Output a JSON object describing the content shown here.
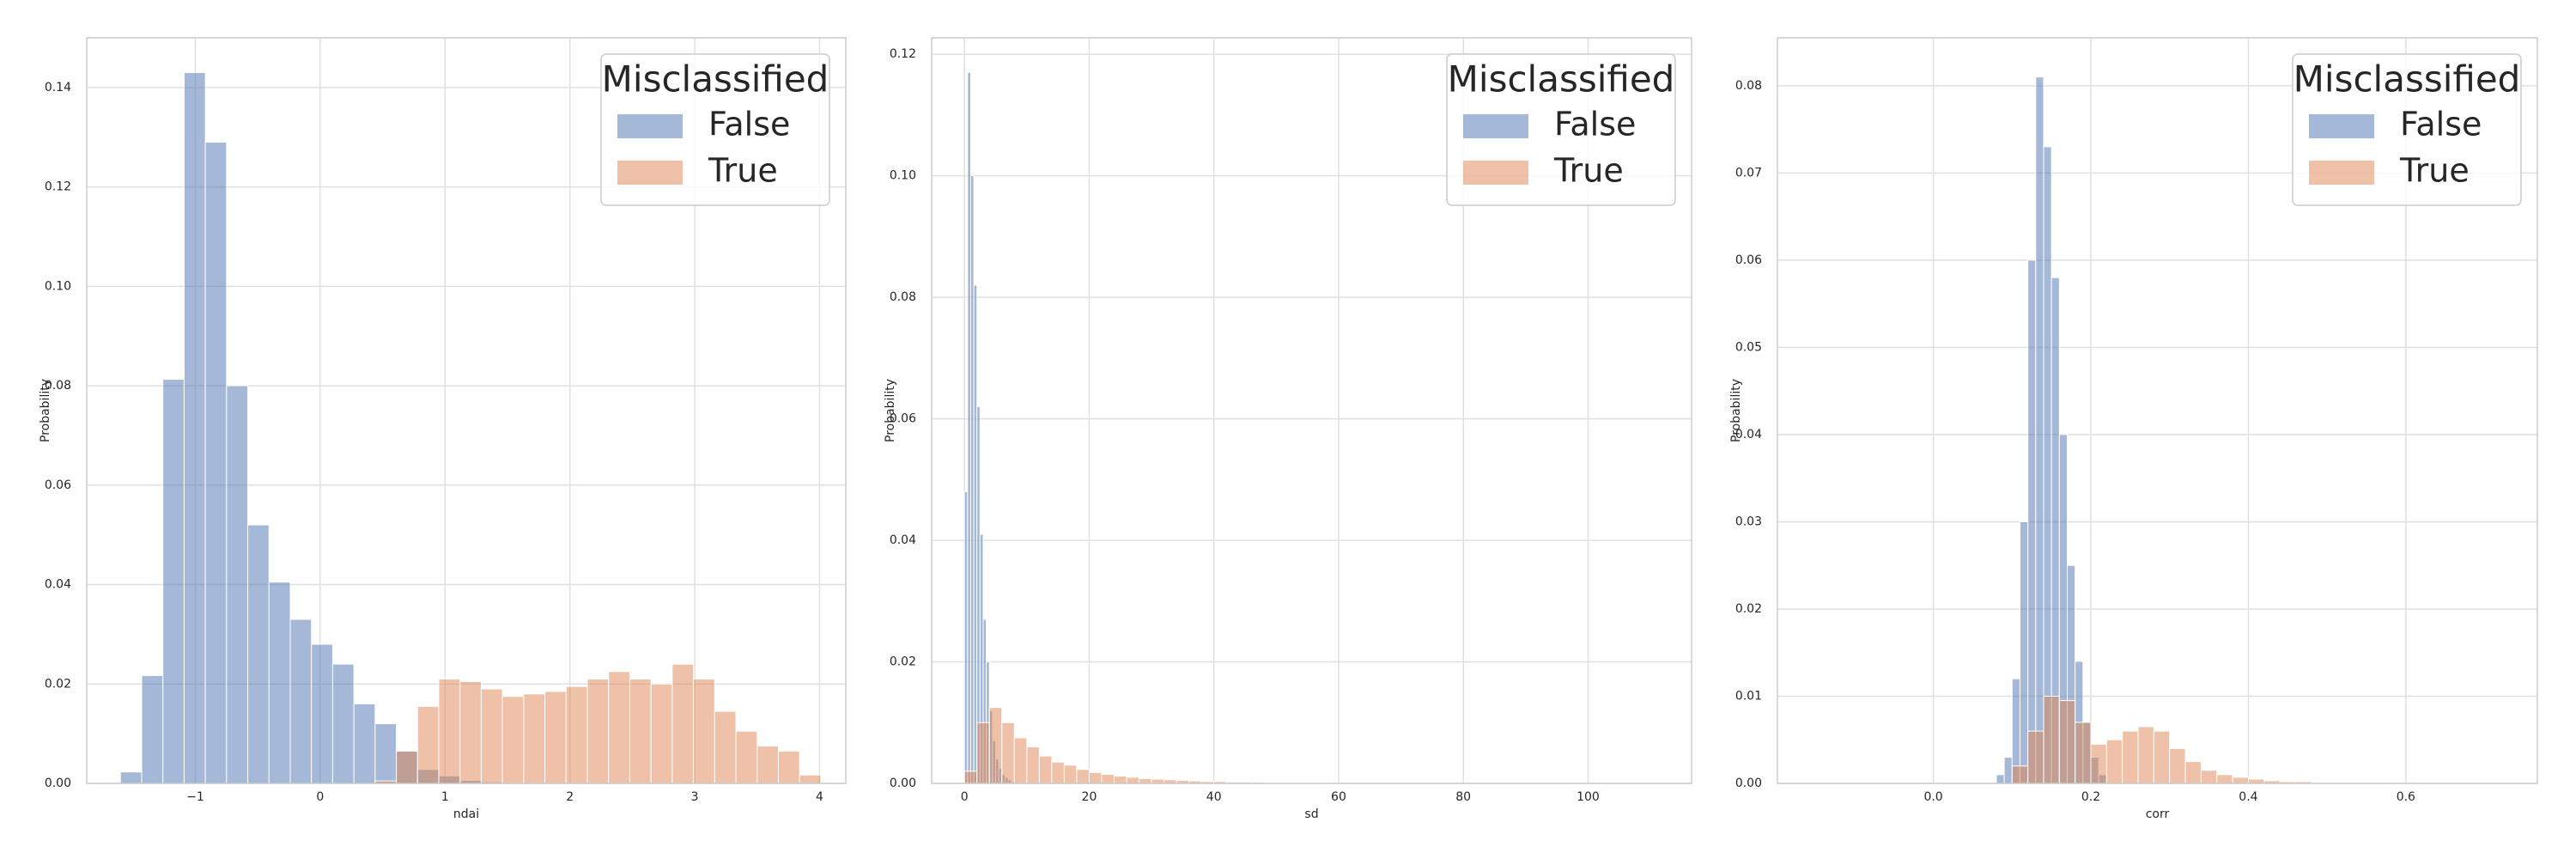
{
  "chart_data": [
    {
      "type": "histogram",
      "x_label": "ndai",
      "y_label": "Probability",
      "legend_title": "Misclassified",
      "legend": "upper right",
      "grid": true,
      "xlim": [
        -1.87,
        4.21
      ],
      "ylim": [
        0,
        0.15
      ],
      "xticks": [
        {
          "value": -1,
          "label": "−1"
        },
        0,
        1,
        2,
        3,
        4
      ],
      "yticks": [
        {
          "value": 0,
          "label": "0.00"
        },
        {
          "value": 0.02,
          "label": "0.02"
        },
        {
          "value": 0.04,
          "label": "0.04"
        },
        {
          "value": 0.06,
          "label": "0.06"
        },
        {
          "value": 0.08,
          "label": "0.08"
        },
        {
          "value": 0.1,
          "label": "0.10"
        },
        {
          "value": 0.12,
          "label": "0.12"
        },
        {
          "value": 0.14,
          "label": "0.14"
        }
      ],
      "series": [
        {
          "name": "False",
          "color": "#4c72b0",
          "bins": [
            -1.6,
            -1.43,
            -1.26,
            -1.09,
            -0.92,
            -0.75,
            -0.58,
            -0.41,
            -0.24,
            -0.07,
            0.1,
            0.27,
            0.44,
            0.61,
            0.78,
            0.95,
            1.12,
            1.29,
            1.46,
            1.63,
            1.8,
            1.97,
            2.14,
            2.31,
            2.48,
            2.65,
            2.82,
            2.99,
            3.16,
            3.33,
            3.5,
            3.67,
            3.84,
            4.01
          ],
          "values": [
            0.0023,
            0.0217,
            0.0813,
            0.143,
            0.129,
            0.08,
            0.052,
            0.0405,
            0.033,
            0.028,
            0.024,
            0.016,
            0.012,
            0.0065,
            0.0028,
            0.0015,
            0.0006,
            0.0003,
            0,
            0,
            0,
            0,
            0,
            0,
            0,
            0,
            0,
            0,
            0,
            0,
            0,
            0,
            0
          ]
        },
        {
          "name": "True",
          "color": "#dd8452",
          "bins": [
            -1.6,
            -1.43,
            -1.26,
            -1.09,
            -0.92,
            -0.75,
            -0.58,
            -0.41,
            -0.24,
            -0.07,
            0.1,
            0.27,
            0.44,
            0.61,
            0.78,
            0.95,
            1.12,
            1.29,
            1.46,
            1.63,
            1.8,
            1.97,
            2.14,
            2.31,
            2.48,
            2.65,
            2.82,
            2.99,
            3.16,
            3.33,
            3.5,
            3.67,
            3.84,
            4.01
          ],
          "values": [
            0,
            0,
            0,
            0,
            0,
            0,
            0,
            0,
            0,
            0,
            0,
            0,
            0.0005,
            0.0065,
            0.0155,
            0.021,
            0.0205,
            0.019,
            0.0175,
            0.018,
            0.0185,
            0.0195,
            0.021,
            0.0225,
            0.021,
            0.02,
            0.024,
            0.021,
            0.0145,
            0.0105,
            0.0075,
            0.0065,
            0.0017
          ]
        }
      ]
    },
    {
      "type": "histogram",
      "x_label": "sd",
      "y_label": "Probability",
      "legend_title": "Misclassified",
      "legend": "upper right",
      "grid": true,
      "xlim": [
        -5.26,
        116.6
      ],
      "ylim": [
        0,
        0.1227
      ],
      "xticks": [
        0,
        20,
        40,
        60,
        80,
        100
      ],
      "yticks": [
        {
          "value": 0,
          "label": "0.00"
        },
        {
          "value": 0.02,
          "label": "0.02"
        },
        {
          "value": 0.04,
          "label": "0.04"
        },
        {
          "value": 0.06,
          "label": "0.06"
        },
        {
          "value": 0.08,
          "label": "0.08"
        },
        {
          "value": 0.1,
          "label": "0.10"
        },
        {
          "value": 0.12,
          "label": "0.12"
        }
      ],
      "series": [
        {
          "name": "False",
          "color": "#4c72b0",
          "bins": [
            0,
            0.5,
            1,
            1.5,
            2,
            2.5,
            3,
            3.5,
            4,
            4.5,
            5,
            5.5,
            6,
            6.5,
            7,
            7.5,
            8
          ],
          "values": [
            0.048,
            0.117,
            0.1,
            0.082,
            0.062,
            0.041,
            0.027,
            0.02,
            0.012,
            0.007,
            0.004,
            0.0025,
            0.0015,
            0.001,
            0.0006,
            0.0003
          ]
        },
        {
          "name": "True",
          "color": "#dd8452",
          "bins": [
            0,
            2,
            4,
            6,
            8,
            10,
            12,
            14,
            16,
            18,
            20,
            22,
            24,
            26,
            28,
            30,
            32,
            34,
            36,
            38,
            40,
            42,
            44,
            46,
            48,
            50,
            52,
            54,
            56,
            58,
            60
          ],
          "values": [
            0.002,
            0.01,
            0.0125,
            0.01,
            0.0075,
            0.006,
            0.0045,
            0.0035,
            0.003,
            0.0023,
            0.0018,
            0.0015,
            0.0012,
            0.001,
            0.0008,
            0.0007,
            0.0006,
            0.0005,
            0.0004,
            0.0003,
            0.0003,
            0.0002,
            0.0002,
            0.0002,
            0.0001,
            0.0001,
            0.0001,
            0.0001,
            0.0001,
            0.0001
          ]
        }
      ]
    },
    {
      "type": "histogram",
      "x_label": "corr",
      "y_label": "Probability",
      "legend_title": "Misclassified",
      "legend": "upper right",
      "grid": true,
      "xlim": [
        -0.198,
        0.767
      ],
      "ylim": [
        0,
        0.0855
      ],
      "xticks": [
        {
          "value": 0,
          "label": "0.0"
        },
        {
          "value": 0.2,
          "label": "0.2"
        },
        {
          "value": 0.4,
          "label": "0.4"
        },
        {
          "value": 0.6,
          "label": "0.6"
        }
      ],
      "yticks": [
        {
          "value": 0,
          "label": "0.00"
        },
        {
          "value": 0.01,
          "label": "0.01"
        },
        {
          "value": 0.02,
          "label": "0.02"
        },
        {
          "value": 0.03,
          "label": "0.03"
        },
        {
          "value": 0.04,
          "label": "0.04"
        },
        {
          "value": 0.05,
          "label": "0.05"
        },
        {
          "value": 0.06,
          "label": "0.06"
        },
        {
          "value": 0.07,
          "label": "0.07"
        },
        {
          "value": 0.08,
          "label": "0.08"
        }
      ],
      "series": [
        {
          "name": "False",
          "color": "#4c72b0",
          "bins": [
            0.08,
            0.09,
            0.1,
            0.11,
            0.12,
            0.13,
            0.14,
            0.15,
            0.16,
            0.17,
            0.18,
            0.19,
            0.2,
            0.21,
            0.22
          ],
          "values": [
            0.001,
            0.003,
            0.012,
            0.03,
            0.06,
            0.081,
            0.073,
            0.058,
            0.04,
            0.025,
            0.014,
            0.007,
            0.003,
            0.001
          ]
        },
        {
          "name": "True",
          "color": "#dd8452",
          "bins": [
            0.1,
            0.12,
            0.14,
            0.16,
            0.18,
            0.2,
            0.22,
            0.24,
            0.26,
            0.28,
            0.3,
            0.32,
            0.34,
            0.36,
            0.38,
            0.4,
            0.42,
            0.44,
            0.46,
            0.48,
            0.5
          ],
          "values": [
            0.002,
            0.006,
            0.01,
            0.0095,
            0.007,
            0.0045,
            0.005,
            0.006,
            0.0065,
            0.006,
            0.004,
            0.0025,
            0.0015,
            0.001,
            0.0007,
            0.0005,
            0.0003,
            0.0002,
            0.0002,
            0.0001
          ]
        }
      ]
    }
  ]
}
